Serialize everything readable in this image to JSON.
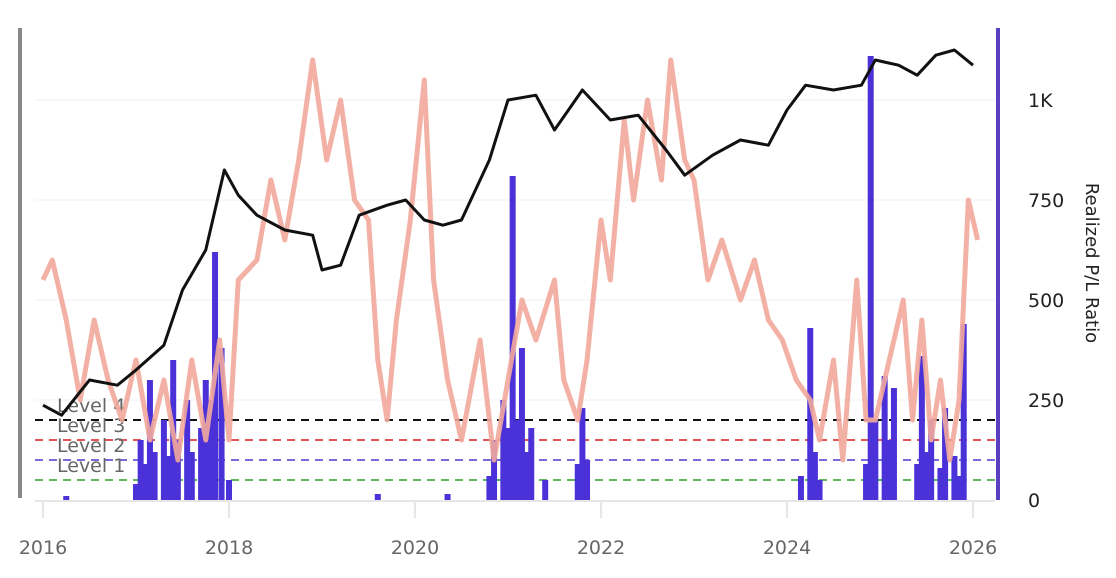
{
  "chart_data": {
    "type": "line",
    "title": "",
    "xlabel": "",
    "ylabel_right": "Realized P/L Ratio",
    "x_ticks": [
      "2016",
      "2018",
      "2020",
      "2022",
      "2024",
      "2026"
    ],
    "xlim": [
      2015.88,
      2026.3
    ],
    "y_right_ticks": [
      {
        "value": 0,
        "label": "0"
      },
      {
        "value": 250,
        "label": "250"
      },
      {
        "value": 500,
        "label": "500"
      },
      {
        "value": 750,
        "label": "750"
      },
      {
        "value": 1000,
        "label": "1K"
      }
    ],
    "ylim_right": [
      0,
      1180
    ],
    "grid": true,
    "colors": {
      "price": "#111111",
      "oscillator": "#f2a89c",
      "bars": "#4b32d8",
      "axis_right": "#5a3fc0",
      "axis_left": "#888888"
    },
    "levels": [
      {
        "name": "Level 4",
        "value": 200,
        "color": "#111111"
      },
      {
        "name": "Level 3",
        "value": 150,
        "color": "#e05555"
      },
      {
        "name": "Level 2",
        "value": 100,
        "color": "#7a6ad8"
      },
      {
        "name": "Level 1",
        "value": 50,
        "color": "#5cb85c"
      }
    ],
    "series": [
      {
        "type": "line",
        "color": "#111111",
        "points": [
          [
            2016.0,
            237
          ],
          [
            2016.2,
            212
          ],
          [
            2016.5,
            300
          ],
          [
            2016.8,
            287
          ],
          [
            2017.0,
            325
          ],
          [
            2017.3,
            387
          ],
          [
            2017.5,
            525
          ],
          [
            2017.75,
            625
          ],
          [
            2017.95,
            825
          ],
          [
            2018.1,
            762
          ],
          [
            2018.3,
            712
          ],
          [
            2018.6,
            675
          ],
          [
            2018.9,
            662
          ],
          [
            2019.0,
            575
          ],
          [
            2019.2,
            587
          ],
          [
            2019.4,
            712
          ],
          [
            2019.7,
            737
          ],
          [
            2019.9,
            750
          ],
          [
            2020.1,
            700
          ],
          [
            2020.3,
            687
          ],
          [
            2020.5,
            700
          ],
          [
            2020.8,
            850
          ],
          [
            2021.0,
            1000
          ],
          [
            2021.3,
            1012
          ],
          [
            2021.5,
            925
          ],
          [
            2021.8,
            1025
          ],
          [
            2022.1,
            950
          ],
          [
            2022.4,
            962
          ],
          [
            2022.7,
            875
          ],
          [
            2022.9,
            812
          ],
          [
            2023.2,
            862
          ],
          [
            2023.5,
            900
          ],
          [
            2023.8,
            887
          ],
          [
            2024.0,
            975
          ],
          [
            2024.2,
            1037
          ],
          [
            2024.5,
            1025
          ],
          [
            2024.8,
            1037
          ],
          [
            2024.95,
            1100
          ],
          [
            2025.2,
            1087
          ],
          [
            2025.4,
            1062
          ],
          [
            2025.6,
            1112
          ],
          [
            2025.8,
            1125
          ],
          [
            2026.0,
            1087
          ]
        ]
      },
      {
        "type": "line",
        "color": "#f2a89c",
        "points": [
          [
            2016.0,
            550
          ],
          [
            2016.1,
            600
          ],
          [
            2016.25,
            450
          ],
          [
            2016.4,
            250
          ],
          [
            2016.55,
            450
          ],
          [
            2016.7,
            300
          ],
          [
            2016.85,
            200
          ],
          [
            2017.0,
            350
          ],
          [
            2017.15,
            150
          ],
          [
            2017.3,
            300
          ],
          [
            2017.45,
            100
          ],
          [
            2017.6,
            350
          ],
          [
            2017.75,
            150
          ],
          [
            2017.9,
            400
          ],
          [
            2018.0,
            150
          ],
          [
            2018.1,
            550
          ],
          [
            2018.3,
            600
          ],
          [
            2018.45,
            800
          ],
          [
            2018.6,
            650
          ],
          [
            2018.75,
            850
          ],
          [
            2018.9,
            1100
          ],
          [
            2019.05,
            850
          ],
          [
            2019.2,
            1000
          ],
          [
            2019.35,
            750
          ],
          [
            2019.5,
            700
          ],
          [
            2019.6,
            350
          ],
          [
            2019.7,
            200
          ],
          [
            2019.8,
            450
          ],
          [
            2019.95,
            700
          ],
          [
            2020.1,
            1050
          ],
          [
            2020.2,
            550
          ],
          [
            2020.35,
            300
          ],
          [
            2020.5,
            150
          ],
          [
            2020.7,
            400
          ],
          [
            2020.85,
            100
          ],
          [
            2021.0,
            300
          ],
          [
            2021.15,
            500
          ],
          [
            2021.3,
            400
          ],
          [
            2021.5,
            550
          ],
          [
            2021.6,
            300
          ],
          [
            2021.75,
            200
          ],
          [
            2021.85,
            350
          ],
          [
            2022.0,
            700
          ],
          [
            2022.1,
            550
          ],
          [
            2022.25,
            950
          ],
          [
            2022.35,
            750
          ],
          [
            2022.5,
            1000
          ],
          [
            2022.65,
            800
          ],
          [
            2022.75,
            1100
          ],
          [
            2022.9,
            850
          ],
          [
            2023.0,
            800
          ],
          [
            2023.15,
            550
          ],
          [
            2023.3,
            650
          ],
          [
            2023.5,
            500
          ],
          [
            2023.65,
            600
          ],
          [
            2023.8,
            450
          ],
          [
            2023.95,
            400
          ],
          [
            2024.1,
            300
          ],
          [
            2024.25,
            250
          ],
          [
            2024.35,
            150
          ],
          [
            2024.5,
            350
          ],
          [
            2024.6,
            100
          ],
          [
            2024.75,
            550
          ],
          [
            2024.85,
            200
          ],
          [
            2024.95,
            200
          ],
          [
            2025.1,
            350
          ],
          [
            2025.25,
            500
          ],
          [
            2025.35,
            200
          ],
          [
            2025.45,
            450
          ],
          [
            2025.55,
            150
          ],
          [
            2025.65,
            300
          ],
          [
            2025.75,
            100
          ],
          [
            2025.85,
            250
          ],
          [
            2025.95,
            750
          ],
          [
            2026.05,
            650
          ]
        ]
      },
      {
        "type": "bar",
        "name": "Realized P/L Ratio",
        "color": "#4b32d8",
        "points": [
          [
            2016.25,
            10
          ],
          [
            2017.0,
            40
          ],
          [
            2017.05,
            150
          ],
          [
            2017.1,
            90
          ],
          [
            2017.15,
            300
          ],
          [
            2017.2,
            120
          ],
          [
            2017.3,
            200
          ],
          [
            2017.35,
            110
          ],
          [
            2017.4,
            350
          ],
          [
            2017.45,
            150
          ],
          [
            2017.55,
            250
          ],
          [
            2017.6,
            120
          ],
          [
            2017.7,
            180
          ],
          [
            2017.75,
            300
          ],
          [
            2017.8,
            250
          ],
          [
            2017.85,
            620
          ],
          [
            2017.92,
            380
          ],
          [
            2018.0,
            50
          ],
          [
            2019.6,
            15
          ],
          [
            2020.35,
            15
          ],
          [
            2020.8,
            60
          ],
          [
            2020.85,
            150
          ],
          [
            2020.95,
            250
          ],
          [
            2021.0,
            180
          ],
          [
            2021.05,
            810
          ],
          [
            2021.1,
            200
          ],
          [
            2021.15,
            380
          ],
          [
            2021.2,
            120
          ],
          [
            2021.25,
            180
          ],
          [
            2021.4,
            50
          ],
          [
            2021.75,
            90
          ],
          [
            2021.8,
            230
          ],
          [
            2021.85,
            100
          ],
          [
            2024.15,
            60
          ],
          [
            2024.25,
            430
          ],
          [
            2024.3,
            120
          ],
          [
            2024.35,
            50
          ],
          [
            2024.85,
            90
          ],
          [
            2024.9,
            1110
          ],
          [
            2024.95,
            200
          ],
          [
            2025.05,
            310
          ],
          [
            2025.1,
            150
          ],
          [
            2025.15,
            280
          ],
          [
            2025.4,
            90
          ],
          [
            2025.45,
            360
          ],
          [
            2025.5,
            120
          ],
          [
            2025.55,
            200
          ],
          [
            2025.65,
            80
          ],
          [
            2025.7,
            230
          ],
          [
            2025.8,
            110
          ],
          [
            2025.85,
            60
          ],
          [
            2025.9,
            440
          ]
        ]
      }
    ]
  }
}
